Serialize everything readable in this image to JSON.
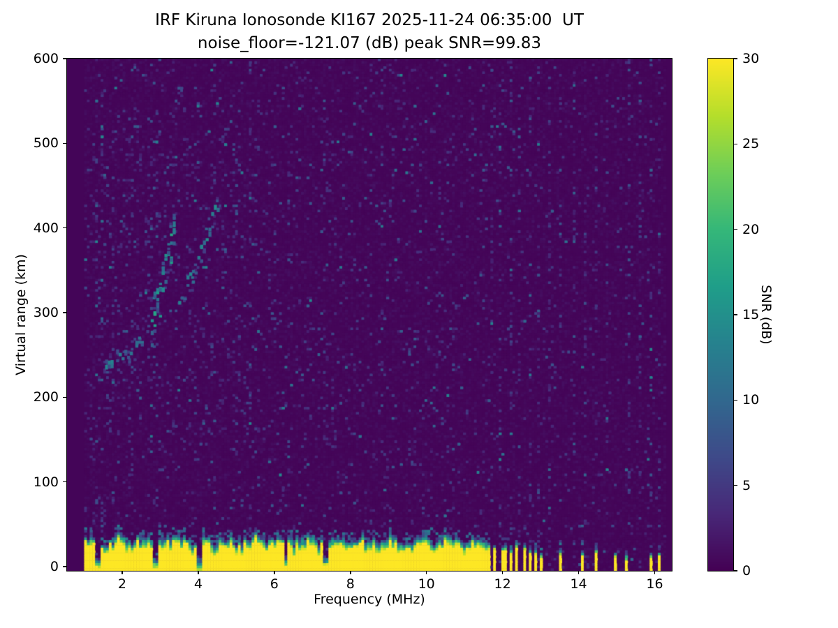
{
  "chart_data": {
    "type": "heatmap",
    "title": "IRF Kiruna Ionosonde KI167 2025-11-24 06:35:00  UT",
    "subtitle": "noise_floor=-121.07 (dB) peak SNR=99.83",
    "xlabel": "Frequency (MHz)",
    "ylabel": "Virtual range (km)",
    "colorbar_label": "SNR (dB)",
    "colormap": "viridis",
    "xlim": [
      0.55,
      16.45
    ],
    "ylim": [
      -5,
      600
    ],
    "clim": [
      0,
      30
    ],
    "x_ticks": [
      2,
      4,
      6,
      8,
      10,
      12,
      14,
      16
    ],
    "y_ticks": [
      0,
      100,
      200,
      300,
      400,
      500,
      600
    ],
    "colorbar_ticks": [
      0,
      5,
      10,
      15,
      20,
      25,
      30
    ],
    "viridis_anchors": [
      "#440154",
      "#482878",
      "#3e4a89",
      "#31688e",
      "#26828e",
      "#1f9e89",
      "#35b779",
      "#6ece58",
      "#b5de2b",
      "#fde725"
    ],
    "data_extent": {
      "freq_min": 1.0,
      "freq_max": 16.3
    },
    "grid": {
      "nf": 212,
      "nr": 200
    },
    "render_seed": 167,
    "noise": {
      "speckle_prob": 0.05,
      "stripe_prob": 0.07,
      "scatter_region": {
        "f_min": 1.2,
        "f_max": 5.6,
        "r_min": 130,
        "r_max": 520
      }
    },
    "ground_band": {
      "freq_end": 11.6,
      "top_mean": 33,
      "notches": [
        1.35,
        2.9,
        4.02,
        6.3,
        7.35
      ]
    },
    "rfi": {
      "start": 11.6,
      "stripes": [
        11.7,
        11.95,
        12.2,
        12.45,
        12.7,
        12.95,
        13.2,
        13.55,
        13.9,
        14.15,
        14.45,
        14.75,
        15.0,
        15.3,
        15.6,
        15.9,
        16.15
      ]
    },
    "yellow_windows": [
      [
        11.66,
        0.035,
        28
      ],
      [
        11.78,
        0.03,
        26
      ],
      [
        11.9,
        0.03,
        27
      ],
      [
        12.0,
        0.025,
        25
      ],
      [
        12.1,
        0.03,
        26
      ],
      [
        12.22,
        0.03,
        24
      ],
      [
        12.35,
        0.03,
        25
      ],
      [
        12.48,
        0.025,
        22
      ],
      [
        12.6,
        0.025,
        23
      ],
      [
        12.72,
        0.025,
        20
      ],
      [
        12.88,
        0.03,
        22
      ],
      [
        13.0,
        0.02,
        18
      ],
      [
        13.5,
        0.04,
        20
      ],
      [
        14.12,
        0.035,
        18
      ],
      [
        14.45,
        0.03,
        20
      ],
      [
        14.97,
        0.04,
        18
      ],
      [
        15.28,
        0.03,
        16
      ],
      [
        15.88,
        0.04,
        18
      ],
      [
        16.1,
        0.03,
        16
      ]
    ],
    "echo_traces": [
      {
        "points": [
          [
            1.55,
            242
          ],
          [
            2.1,
            256
          ],
          [
            2.7,
            274
          ]
        ],
        "spread": 9,
        "density": 0.5,
        "dashes_per_col": 3,
        "snr_min": 5,
        "snr_max": 14
      },
      {
        "points": [
          [
            2.75,
            290
          ],
          [
            2.95,
            330
          ],
          [
            3.15,
            372
          ],
          [
            3.35,
            400
          ]
        ],
        "spread": 26,
        "density": 0.8,
        "dashes_per_col": 7,
        "snr_min": 6,
        "snr_max": 18
      },
      {
        "points": [
          [
            3.4,
            312
          ],
          [
            3.75,
            335
          ],
          [
            4.1,
            378
          ],
          [
            4.45,
            428
          ]
        ],
        "spread": 16,
        "density": 0.55,
        "dashes_per_col": 3,
        "snr_min": 5,
        "snr_max": 15
      }
    ]
  }
}
